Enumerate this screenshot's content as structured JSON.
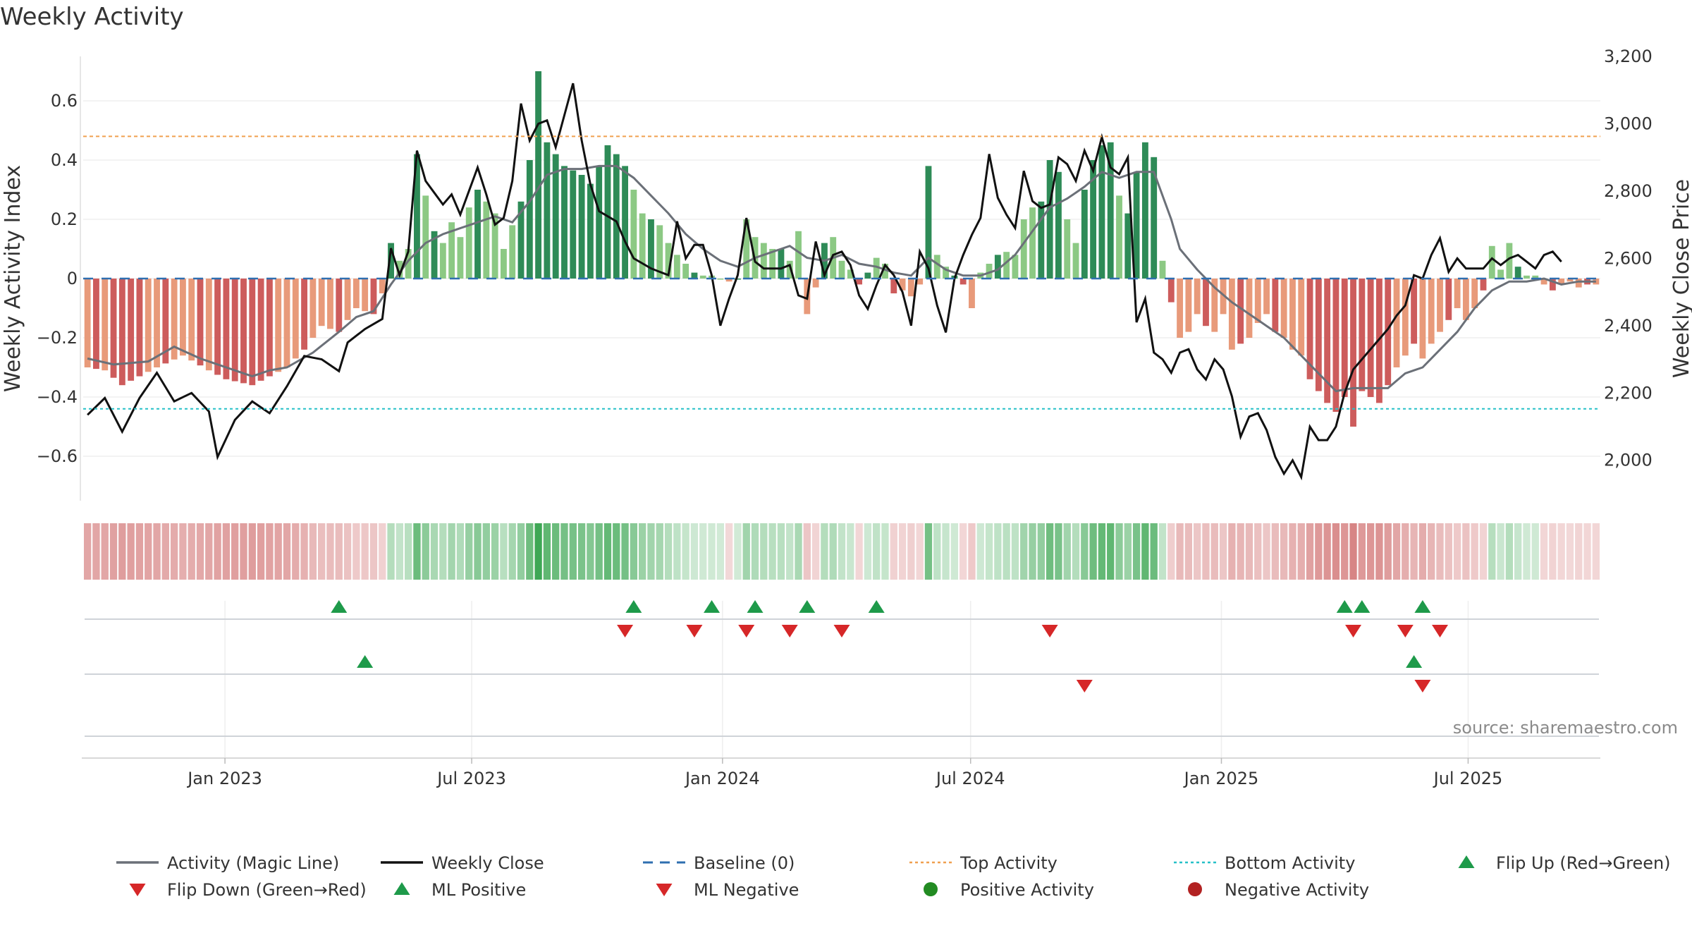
{
  "chart_data": {
    "type": "bar",
    "title": "Weekly Activity",
    "ylabel": "Weekly Activity Index",
    "y2label": "Weekly Close Price",
    "ylim": [
      -0.75,
      0.75
    ],
    "y2lim": [
      1880,
      3200
    ],
    "yticks": [
      0.6,
      0.4,
      0.2,
      0,
      -0.2,
      -0.4,
      -0.6
    ],
    "ytick_labels": [
      "0.6",
      "0.4",
      "0.2",
      "0",
      "−0.2",
      "−0.4",
      "−0.6"
    ],
    "y2ticks": [
      3200,
      3000,
      2800,
      2600,
      2400,
      2200,
      2000
    ],
    "y2tick_labels": [
      "3,200",
      "3,000",
      "2,800",
      "2,600",
      "2,400",
      "2,200",
      "2,000"
    ],
    "x_start": "2022-09-19",
    "x_end": "2025-10-06",
    "xticks": [
      {
        "date": "2023-01-01",
        "label": "Jan 2023"
      },
      {
        "date": "2023-07-01",
        "label": "Jul 2023"
      },
      {
        "date": "2024-01-01",
        "label": "Jan 2024"
      },
      {
        "date": "2024-07-01",
        "label": "Jul 2024"
      },
      {
        "date": "2025-01-01",
        "label": "Jan 2025"
      },
      {
        "date": "2025-07-01",
        "label": "Jul 2025"
      }
    ],
    "top_activity": 0.48,
    "bottom_activity": -0.44,
    "baseline": 0,
    "activity_knots": [
      [
        0,
        -0.3
      ],
      [
        2,
        -0.31
      ],
      [
        4,
        -0.36
      ],
      [
        8,
        -0.3
      ],
      [
        11,
        -0.26
      ],
      [
        14,
        -0.31
      ],
      [
        16,
        -0.34
      ],
      [
        19,
        -0.36
      ],
      [
        21,
        -0.33
      ],
      [
        23,
        -0.3
      ],
      [
        25,
        -0.24
      ],
      [
        27,
        -0.16
      ],
      [
        29,
        -0.18
      ],
      [
        31,
        -0.1
      ],
      [
        33,
        -0.12
      ],
      [
        34,
        -0.05
      ],
      [
        35,
        0.12
      ],
      [
        36,
        0.06
      ],
      [
        37,
        0.1
      ],
      [
        38,
        0.42
      ],
      [
        39,
        0.28
      ],
      [
        40,
        0.16
      ],
      [
        41,
        0.12
      ],
      [
        42,
        0.19
      ],
      [
        43,
        0.14
      ],
      [
        44,
        0.24
      ],
      [
        45,
        0.3
      ],
      [
        46,
        0.26
      ],
      [
        47,
        0.22
      ],
      [
        48,
        0.1
      ],
      [
        49,
        0.18
      ],
      [
        50,
        0.26
      ],
      [
        51,
        0.4
      ],
      [
        52,
        0.7
      ],
      [
        53,
        0.46
      ],
      [
        54,
        0.42
      ],
      [
        55,
        0.38
      ],
      [
        57,
        0.35
      ],
      [
        58,
        0.32
      ],
      [
        59,
        0.38
      ],
      [
        60,
        0.45
      ],
      [
        61,
        0.42
      ],
      [
        62,
        0.38
      ],
      [
        63,
        0.3
      ],
      [
        64,
        0.22
      ],
      [
        65,
        0.2
      ],
      [
        66,
        0.18
      ],
      [
        67,
        0.12
      ],
      [
        68,
        0.08
      ],
      [
        69,
        0.05
      ],
      [
        70,
        0.02
      ],
      [
        71,
        0.01
      ],
      [
        72,
        0.01
      ],
      [
        73,
        0.0
      ],
      [
        74,
        -0.01
      ],
      [
        75,
        0.0
      ],
      [
        76,
        0.2
      ],
      [
        77,
        0.14
      ],
      [
        78,
        0.12
      ],
      [
        79,
        0.1
      ],
      [
        80,
        0.1
      ],
      [
        81,
        0.06
      ],
      [
        82,
        0.16
      ],
      [
        83,
        -0.12
      ],
      [
        84,
        -0.03
      ],
      [
        85,
        0.12
      ],
      [
        86,
        0.14
      ],
      [
        87,
        0.06
      ],
      [
        88,
        0.03
      ],
      [
        89,
        -0.02
      ],
      [
        90,
        0.02
      ],
      [
        91,
        0.07
      ],
      [
        92,
        0.05
      ],
      [
        93,
        -0.05
      ],
      [
        94,
        -0.04
      ],
      [
        95,
        -0.06
      ],
      [
        96,
        -0.02
      ],
      [
        97,
        0.38
      ],
      [
        98,
        0.08
      ],
      [
        99,
        0.04
      ],
      [
        100,
        0.01
      ],
      [
        101,
        -0.02
      ],
      [
        102,
        -0.1
      ],
      [
        103,
        0.02
      ],
      [
        104,
        0.05
      ],
      [
        105,
        0.08
      ],
      [
        106,
        0.09
      ],
      [
        107,
        0.08
      ],
      [
        108,
        0.2
      ],
      [
        109,
        0.24
      ],
      [
        110,
        0.26
      ],
      [
        111,
        0.4
      ],
      [
        112,
        0.36
      ],
      [
        113,
        0.2
      ],
      [
        114,
        0.12
      ],
      [
        115,
        0.3
      ],
      [
        116,
        0.4
      ],
      [
        117,
        0.45
      ],
      [
        118,
        0.46
      ],
      [
        119,
        0.28
      ],
      [
        120,
        0.22
      ],
      [
        121,
        0.36
      ],
      [
        122,
        0.46
      ],
      [
        123,
        0.41
      ],
      [
        124,
        0.06
      ],
      [
        125,
        -0.08
      ],
      [
        126,
        -0.2
      ],
      [
        127,
        -0.18
      ],
      [
        128,
        -0.12
      ],
      [
        129,
        -0.16
      ],
      [
        130,
        -0.18
      ],
      [
        131,
        -0.12
      ],
      [
        132,
        -0.24
      ],
      [
        134,
        -0.2
      ],
      [
        135,
        -0.15
      ],
      [
        136,
        -0.12
      ],
      [
        137,
        -0.18
      ],
      [
        138,
        -0.2
      ],
      [
        139,
        -0.24
      ],
      [
        140,
        -0.26
      ],
      [
        141,
        -0.34
      ],
      [
        142,
        -0.38
      ],
      [
        143,
        -0.42
      ],
      [
        144,
        -0.45
      ],
      [
        145,
        -0.4
      ],
      [
        146,
        -0.5
      ],
      [
        147,
        -0.38
      ],
      [
        148,
        -0.4
      ],
      [
        149,
        -0.42
      ],
      [
        150,
        -0.36
      ],
      [
        151,
        -0.3
      ],
      [
        152,
        -0.26
      ],
      [
        153,
        -0.22
      ],
      [
        154,
        -0.27
      ],
      [
        155,
        -0.22
      ],
      [
        156,
        -0.18
      ],
      [
        157,
        -0.14
      ],
      [
        158,
        -0.1
      ],
      [
        159,
        -0.14
      ],
      [
        160,
        -0.1
      ],
      [
        161,
        -0.04
      ],
      [
        162,
        0.11
      ],
      [
        163,
        0.03
      ],
      [
        164,
        0.12
      ],
      [
        165,
        0.04
      ],
      [
        166,
        0.01
      ],
      [
        167,
        0.01
      ],
      [
        168,
        -0.02
      ],
      [
        169,
        -0.04
      ],
      [
        170,
        -0.02
      ],
      [
        171,
        -0.01
      ],
      [
        172,
        -0.03
      ],
      [
        173,
        -0.02
      ],
      [
        174,
        -0.02
      ]
    ],
    "magic_line_knots": [
      [
        0,
        -0.27
      ],
      [
        3,
        -0.29
      ],
      [
        7,
        -0.28
      ],
      [
        10,
        -0.23
      ],
      [
        13,
        -0.27
      ],
      [
        16,
        -0.3
      ],
      [
        19,
        -0.33
      ],
      [
        21,
        -0.31
      ],
      [
        23,
        -0.3
      ],
      [
        26,
        -0.25
      ],
      [
        29,
        -0.18
      ],
      [
        31,
        -0.13
      ],
      [
        33,
        -0.11
      ],
      [
        35,
        -0.02
      ],
      [
        37,
        0.06
      ],
      [
        39,
        0.12
      ],
      [
        41,
        0.15
      ],
      [
        43,
        0.17
      ],
      [
        45,
        0.19
      ],
      [
        47,
        0.21
      ],
      [
        49,
        0.19
      ],
      [
        51,
        0.26
      ],
      [
        53,
        0.35
      ],
      [
        55,
        0.37
      ],
      [
        57,
        0.37
      ],
      [
        59,
        0.38
      ],
      [
        61,
        0.38
      ],
      [
        63,
        0.34
      ],
      [
        65,
        0.28
      ],
      [
        67,
        0.22
      ],
      [
        69,
        0.15
      ],
      [
        71,
        0.1
      ],
      [
        73,
        0.06
      ],
      [
        75,
        0.04
      ],
      [
        77,
        0.07
      ],
      [
        79,
        0.09
      ],
      [
        81,
        0.11
      ],
      [
        83,
        0.07
      ],
      [
        85,
        0.06
      ],
      [
        87,
        0.08
      ],
      [
        89,
        0.05
      ],
      [
        91,
        0.04
      ],
      [
        93,
        0.02
      ],
      [
        95,
        0.01
      ],
      [
        97,
        0.07
      ],
      [
        99,
        0.03
      ],
      [
        101,
        0.01
      ],
      [
        103,
        0.01
      ],
      [
        105,
        0.03
      ],
      [
        107,
        0.08
      ],
      [
        109,
        0.16
      ],
      [
        111,
        0.24
      ],
      [
        113,
        0.27
      ],
      [
        115,
        0.31
      ],
      [
        117,
        0.36
      ],
      [
        119,
        0.34
      ],
      [
        121,
        0.36
      ],
      [
        123,
        0.36
      ],
      [
        125,
        0.2
      ],
      [
        126,
        0.1
      ],
      [
        128,
        0.03
      ],
      [
        130,
        -0.03
      ],
      [
        132,
        -0.08
      ],
      [
        134,
        -0.12
      ],
      [
        136,
        -0.16
      ],
      [
        138,
        -0.2
      ],
      [
        140,
        -0.26
      ],
      [
        142,
        -0.32
      ],
      [
        144,
        -0.38
      ],
      [
        146,
        -0.37
      ],
      [
        148,
        -0.37
      ],
      [
        150,
        -0.37
      ],
      [
        152,
        -0.32
      ],
      [
        154,
        -0.3
      ],
      [
        156,
        -0.24
      ],
      [
        158,
        -0.18
      ],
      [
        160,
        -0.1
      ],
      [
        162,
        -0.04
      ],
      [
        164,
        -0.01
      ],
      [
        166,
        -0.01
      ],
      [
        168,
        0.0
      ],
      [
        170,
        -0.02
      ],
      [
        172,
        -0.01
      ],
      [
        174,
        -0.01
      ]
    ],
    "price_knots": [
      [
        0,
        2135
      ],
      [
        2,
        2185
      ],
      [
        4,
        2085
      ],
      [
        6,
        2185
      ],
      [
        8,
        2260
      ],
      [
        10,
        2175
      ],
      [
        12,
        2200
      ],
      [
        14,
        2145
      ],
      [
        15,
        2010
      ],
      [
        17,
        2120
      ],
      [
        19,
        2175
      ],
      [
        21,
        2140
      ],
      [
        23,
        2220
      ],
      [
        25,
        2310
      ],
      [
        27,
        2300
      ],
      [
        29,
        2265
      ],
      [
        30,
        2350
      ],
      [
        32,
        2390
      ],
      [
        34,
        2420
      ],
      [
        35,
        2630
      ],
      [
        36,
        2550
      ],
      [
        37,
        2620
      ],
      [
        38,
        2920
      ],
      [
        39,
        2830
      ],
      [
        41,
        2760
      ],
      [
        42,
        2790
      ],
      [
        43,
        2730
      ],
      [
        45,
        2870
      ],
      [
        46,
        2790
      ],
      [
        47,
        2700
      ],
      [
        48,
        2720
      ],
      [
        49,
        2830
      ],
      [
        50,
        3060
      ],
      [
        51,
        2950
      ],
      [
        52,
        3000
      ],
      [
        53,
        3010
      ],
      [
        54,
        2930
      ],
      [
        56,
        3120
      ],
      [
        57,
        2950
      ],
      [
        58,
        2820
      ],
      [
        59,
        2740
      ],
      [
        61,
        2710
      ],
      [
        62,
        2650
      ],
      [
        63,
        2600
      ],
      [
        65,
        2570
      ],
      [
        67,
        2550
      ],
      [
        68,
        2710
      ],
      [
        69,
        2600
      ],
      [
        70,
        2640
      ],
      [
        71,
        2640
      ],
      [
        72,
        2550
      ],
      [
        73,
        2400
      ],
      [
        74,
        2480
      ],
      [
        75,
        2550
      ],
      [
        76,
        2720
      ],
      [
        77,
        2590
      ],
      [
        78,
        2570
      ],
      [
        79,
        2570
      ],
      [
        80,
        2570
      ],
      [
        81,
        2580
      ],
      [
        82,
        2490
      ],
      [
        83,
        2480
      ],
      [
        84,
        2650
      ],
      [
        85,
        2550
      ],
      [
        86,
        2610
      ],
      [
        87,
        2620
      ],
      [
        88,
        2580
      ],
      [
        89,
        2490
      ],
      [
        90,
        2450
      ],
      [
        91,
        2520
      ],
      [
        92,
        2580
      ],
      [
        93,
        2550
      ],
      [
        94,
        2500
      ],
      [
        95,
        2400
      ],
      [
        96,
        2620
      ],
      [
        97,
        2570
      ],
      [
        98,
        2460
      ],
      [
        99,
        2380
      ],
      [
        100,
        2540
      ],
      [
        101,
        2610
      ],
      [
        102,
        2670
      ],
      [
        103,
        2720
      ],
      [
        104,
        2910
      ],
      [
        105,
        2780
      ],
      [
        106,
        2730
      ],
      [
        107,
        2690
      ],
      [
        108,
        2860
      ],
      [
        109,
        2770
      ],
      [
        110,
        2750
      ],
      [
        111,
        2760
      ],
      [
        112,
        2900
      ],
      [
        113,
        2880
      ],
      [
        114,
        2830
      ],
      [
        115,
        2920
      ],
      [
        116,
        2860
      ],
      [
        117,
        2960
      ],
      [
        118,
        2870
      ],
      [
        119,
        2850
      ],
      [
        120,
        2900
      ],
      [
        121,
        2410
      ],
      [
        122,
        2480
      ],
      [
        123,
        2320
      ],
      [
        124,
        2300
      ],
      [
        125,
        2260
      ],
      [
        126,
        2320
      ],
      [
        127,
        2330
      ],
      [
        128,
        2270
      ],
      [
        129,
        2240
      ],
      [
        130,
        2300
      ],
      [
        131,
        2270
      ],
      [
        132,
        2190
      ],
      [
        133,
        2070
      ],
      [
        134,
        2130
      ],
      [
        135,
        2140
      ],
      [
        136,
        2090
      ],
      [
        137,
        2010
      ],
      [
        138,
        1960
      ],
      [
        139,
        2000
      ],
      [
        140,
        1950
      ],
      [
        141,
        2100
      ],
      [
        142,
        2060
      ],
      [
        143,
        2060
      ],
      [
        144,
        2100
      ],
      [
        145,
        2200
      ],
      [
        146,
        2270
      ],
      [
        147,
        2300
      ],
      [
        148,
        2330
      ],
      [
        149,
        2360
      ],
      [
        150,
        2390
      ],
      [
        151,
        2430
      ],
      [
        152,
        2460
      ],
      [
        153,
        2550
      ],
      [
        154,
        2540
      ],
      [
        155,
        2610
      ],
      [
        156,
        2660
      ],
      [
        157,
        2560
      ],
      [
        158,
        2600
      ],
      [
        159,
        2570
      ],
      [
        160,
        2570
      ],
      [
        161,
        2570
      ],
      [
        162,
        2600
      ],
      [
        163,
        2580
      ],
      [
        164,
        2600
      ],
      [
        165,
        2610
      ],
      [
        166,
        2590
      ],
      [
        167,
        2570
      ],
      [
        168,
        2610
      ],
      [
        169,
        2620
      ],
      [
        170,
        2590
      ]
    ],
    "ml_flip_up": [
      29,
      63,
      72,
      77,
      83,
      91,
      145,
      147,
      154
    ],
    "ml_flip_down": [
      62,
      70,
      76,
      81,
      87,
      111,
      146,
      152,
      156
    ],
    "ml_positive": [
      32,
      153
    ],
    "ml_negative": [
      115,
      154
    ],
    "colors": {
      "pos_dark": "#2e8b57",
      "pos_light": "#8cc984",
      "neg_dark": "#cd5c5c",
      "neg_light": "#e89a7a",
      "magic_line": "#6b7078",
      "close": "#111111",
      "baseline": "#2f6fb0",
      "top": "#f0a050",
      "bottom": "#26c0c8",
      "up_marker": "#1e9a4a",
      "down_marker": "#d62728"
    },
    "legend": [
      {
        "label": "Activity (Magic Line)",
        "kind": "line",
        "color": "#6b7078"
      },
      {
        "label": "Weekly Close",
        "kind": "line",
        "color": "#111111"
      },
      {
        "label": "Baseline (0)",
        "kind": "dash",
        "color": "#2f6fb0"
      },
      {
        "label": "Top Activity",
        "kind": "dot",
        "color": "#f0a050"
      },
      {
        "label": "Bottom Activity",
        "kind": "dot",
        "color": "#26c0c8"
      },
      {
        "label": "Flip Up (Red→Green)",
        "kind": "up",
        "color": "#1e9a4a"
      },
      {
        "label": "Flip Down (Green→Red)",
        "kind": "down",
        "color": "#d62728"
      },
      {
        "label": "ML Positive",
        "kind": "up",
        "color": "#1e9a4a"
      },
      {
        "label": "ML Negative",
        "kind": "down",
        "color": "#d62728"
      },
      {
        "label": "Positive Activity",
        "kind": "circle",
        "color": "#228b22"
      },
      {
        "label": "Negative Activity",
        "kind": "circle",
        "color": "#b22222"
      }
    ],
    "source": "source: sharemaestro.com"
  }
}
